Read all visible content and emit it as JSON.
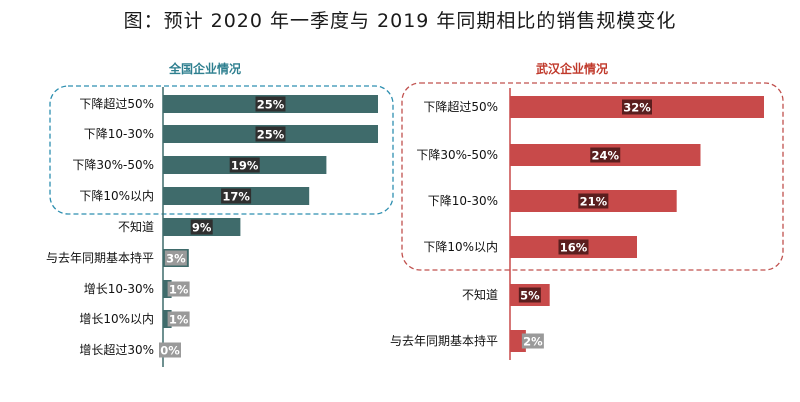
{
  "title": "图：预计 2020 年一季度与 2019 年同期相比的销售规模变化",
  "chart_data": [
    {
      "type": "bar",
      "orientation": "horizontal",
      "title": "全国企业情况",
      "categories": [
        "下降超过50%",
        "下降10-30%",
        "下降30%-50%",
        "下降10%以内",
        "不知道",
        "与去年同期基本持平",
        "增长10-30%",
        "增长10%以内",
        "增长超过30%"
      ],
      "values": [
        25,
        25,
        19,
        17,
        9,
        3,
        1,
        1,
        0
      ],
      "labels": [
        "25%",
        "25%",
        "19%",
        "17%",
        "9%",
        "3%",
        "1%",
        "1%",
        "0%"
      ],
      "unit": "%",
      "xlim": [
        0,
        25
      ],
      "highlighted_group": [
        "下降超过50%",
        "下降10-30%",
        "下降30%-50%",
        "下降10%以内"
      ],
      "colors": {
        "bar": "#3f6b6b",
        "label_box": "#2f2f2f",
        "group_border": "#2e8fb0",
        "title": "#2e7f8f"
      }
    },
    {
      "type": "bar",
      "orientation": "horizontal",
      "title": "武汉企业情况",
      "categories": [
        "下降超过50%",
        "下降30%-50%",
        "下降10-30%",
        "下降10%以内",
        "不知道",
        "与去年同期基本持平"
      ],
      "values": [
        32,
        24,
        21,
        16,
        5,
        2
      ],
      "labels": [
        "32%",
        "24%",
        "21%",
        "16%",
        "5%",
        "2%"
      ],
      "unit": "%",
      "xlim": [
        0,
        32
      ],
      "highlighted_group": [
        "下降超过50%",
        "下降30%-50%",
        "下降10-30%",
        "下降10%以内"
      ],
      "colors": {
        "bar": "#c84a4a",
        "label_box": "#5a1e1e",
        "group_border": "#c0504d",
        "title": "#c0392b"
      }
    }
  ]
}
